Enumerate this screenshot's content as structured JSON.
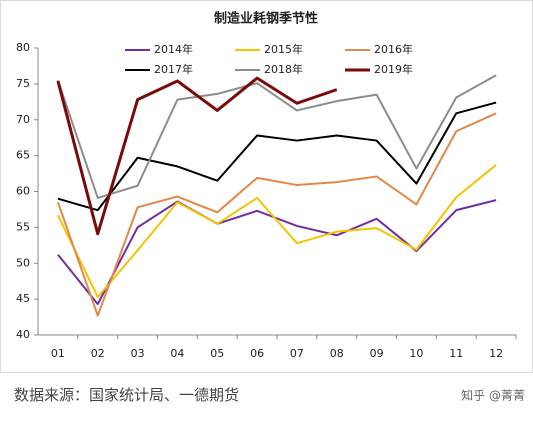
{
  "chart_data": {
    "type": "line",
    "title": "制造业耗钢季节性",
    "categories": [
      "01",
      "02",
      "03",
      "04",
      "05",
      "06",
      "07",
      "08",
      "09",
      "10",
      "11",
      "12"
    ],
    "series": [
      {
        "name": "2014年",
        "color": "#7030a0",
        "values": [
          51.2,
          44.3,
          55.0,
          58.6,
          55.5,
          57.3,
          55.2,
          53.9,
          56.2,
          51.7,
          57.4,
          58.8
        ]
      },
      {
        "name": "2015年",
        "color": "#f5c400",
        "values": [
          56.7,
          45.3,
          51.8,
          58.5,
          55.5,
          59.1,
          52.8,
          54.4,
          54.9,
          51.9,
          59.2,
          63.7
        ]
      },
      {
        "name": "2016年",
        "color": "#e0894a",
        "values": [
          58.5,
          42.7,
          57.8,
          59.3,
          57.1,
          61.9,
          60.9,
          61.3,
          62.1,
          58.2,
          68.4,
          70.9
        ]
      },
      {
        "name": "2017年",
        "color": "#000000",
        "values": [
          59.0,
          57.4,
          64.7,
          63.5,
          61.5,
          67.8,
          67.1,
          67.8,
          67.1,
          61.1,
          70.9,
          72.4
        ]
      },
      {
        "name": "2018年",
        "color": "#8c8c8c",
        "values": [
          75.5,
          59.1,
          60.8,
          72.8,
          73.6,
          75.1,
          71.3,
          72.6,
          73.5,
          63.2,
          73.1,
          76.2
        ]
      },
      {
        "name": "2019年",
        "color": "#7b0a0a",
        "values": [
          75.4,
          54.1,
          72.8,
          75.4,
          71.3,
          75.8,
          72.3,
          74.2,
          null,
          null,
          null,
          null
        ]
      }
    ],
    "ylim": [
      40,
      80
    ],
    "yticks": [
      40,
      45,
      50,
      55,
      60,
      65,
      70,
      75,
      80
    ],
    "grid": false
  },
  "source": "数据来源：国家统计局、一德期货",
  "watermark": "知乎 @菁菁"
}
